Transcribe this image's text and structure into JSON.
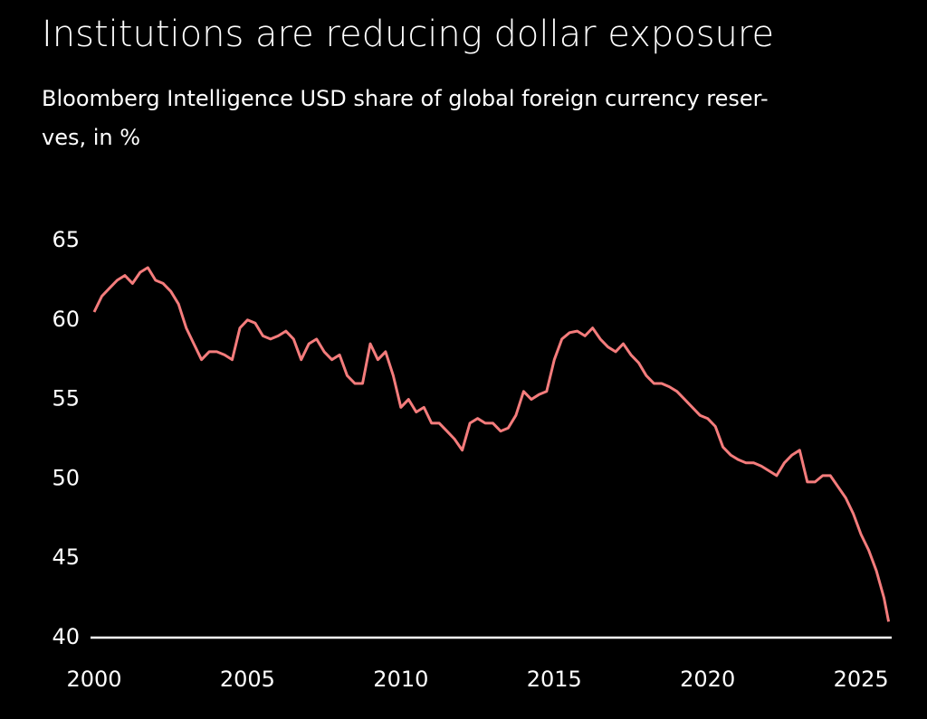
{
  "chart_data": {
    "type": "line",
    "title": "Institutions are reducing dollar exposure",
    "subtitle": [
      "Bloomberg Intelligence USD share of global foreign currency reser-",
      "ves, in %"
    ],
    "x": [
      2000,
      2000.25,
      2000.5,
      2000.75,
      2001,
      2001.25,
      2001.5,
      2001.75,
      2002,
      2002.25,
      2002.5,
      2002.75,
      2003,
      2003.25,
      2003.5,
      2003.75,
      2004,
      2004.25,
      2004.5,
      2004.75,
      2005,
      2005.25,
      2005.5,
      2005.75,
      2006,
      2006.25,
      2006.5,
      2006.75,
      2007,
      2007.25,
      2007.5,
      2007.75,
      2008,
      2008.25,
      2008.5,
      2008.75,
      2009,
      2009.25,
      2009.5,
      2009.75,
      2010,
      2010.25,
      2010.5,
      2010.75,
      2011,
      2011.25,
      2011.5,
      2011.75,
      2012,
      2012.25,
      2012.5,
      2012.75,
      2013,
      2013.25,
      2013.5,
      2013.75,
      2014,
      2014.25,
      2014.5,
      2014.75,
      2015,
      2015.25,
      2015.5,
      2015.75,
      2016,
      2016.25,
      2016.5,
      2016.75,
      2017,
      2017.25,
      2017.5,
      2017.75,
      2018,
      2018.25,
      2018.5,
      2018.75,
      2019,
      2019.25,
      2019.5,
      2019.75,
      2020,
      2020.25,
      2020.5,
      2020.75,
      2021,
      2021.25,
      2021.5,
      2021.75,
      2022,
      2022.25,
      2022.5,
      2022.75,
      2023,
      2023.25,
      2023.5,
      2023.75,
      2024,
      2024.25,
      2024.5,
      2024.75,
      2025,
      2025.25,
      2025.5,
      2025.75,
      2025.9
    ],
    "series": [
      {
        "color": "#f47c7c",
        "values": [
          60.5,
          61.5,
          62,
          62.5,
          62.8,
          62.3,
          63,
          63.3,
          62.5,
          62.3,
          61.8,
          61,
          59.5,
          58.5,
          57.5,
          58,
          58,
          57.8,
          57.5,
          59.5,
          60,
          59.8,
          59,
          58.8,
          59,
          59.3,
          58.8,
          57.5,
          58.5,
          58.8,
          58,
          57.5,
          57.8,
          56.5,
          56,
          56,
          58.5,
          57.5,
          58,
          56.5,
          54.5,
          55,
          54.2,
          54.5,
          53.5,
          53.5,
          53,
          52.5,
          51.8,
          53.5,
          53.8,
          53.5,
          53.5,
          53,
          53.2,
          54,
          55.5,
          55,
          55.3,
          55.5,
          57.5,
          58.8,
          59.2,
          59.3,
          59,
          59.5,
          58.8,
          58.3,
          58,
          58.5,
          57.8,
          57.3,
          56.5,
          56,
          56,
          55.8,
          55.5,
          55,
          54.5,
          54,
          53.8,
          53.3,
          52,
          51.5,
          51.2,
          51,
          51,
          50.8,
          50.5,
          50.2,
          51,
          51.5,
          51.8,
          49.8,
          49.8,
          50.2,
          50.2,
          49.5,
          48.8,
          47.8,
          46.5,
          45.5,
          44.2,
          42.5,
          41
        ]
      }
    ],
    "xlim": [
      2000,
      2026
    ],
    "xticks": [
      2000,
      2005,
      2010,
      2015,
      2020,
      2025
    ],
    "ylim": [
      40,
      65
    ],
    "yticks": [
      40,
      45,
      50,
      55,
      60,
      65
    ],
    "grid": false
  }
}
